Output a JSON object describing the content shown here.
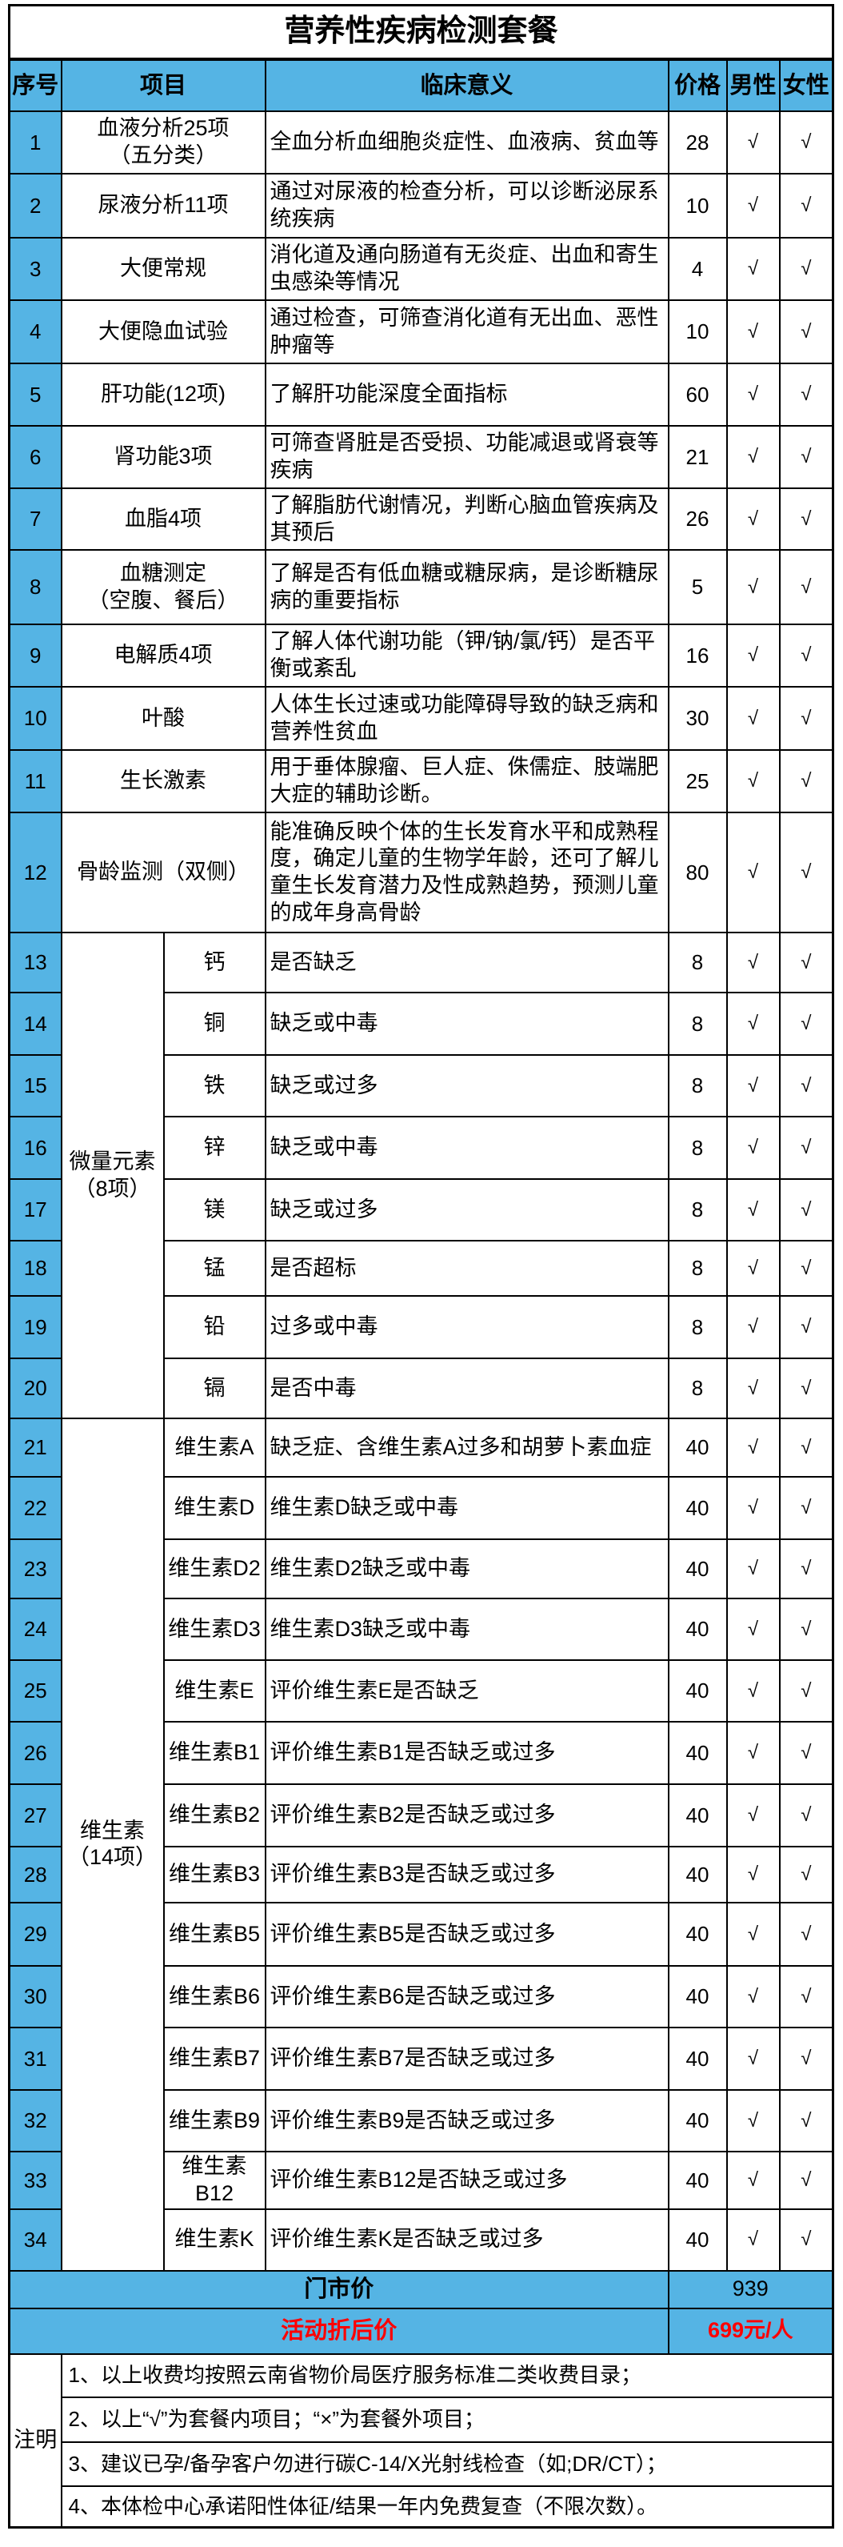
{
  "title": "营养性疾病检测套餐",
  "header": {
    "no": "序号",
    "item": "项目",
    "meaning": "临床意义",
    "price": "价格",
    "male": "男性",
    "female": "女性"
  },
  "colors": {
    "header_bg": "#55B4E4",
    "highlight_red": "#FF0000",
    "border": "#000000"
  },
  "check_mark": "√",
  "sections": [
    {
      "type": "flat",
      "rows": [
        {
          "no": "1",
          "item": "血液分析25项\n（五分类）",
          "meaning": "全血分析血细胞炎症性、血液病、贫血等",
          "price": "28",
          "male": "√",
          "female": "√"
        },
        {
          "no": "2",
          "item": "尿液分析11项",
          "meaning": "通过对尿液的检查分析，可以诊断泌尿系统疾病",
          "price": "10",
          "male": "√",
          "female": "√"
        },
        {
          "no": "3",
          "item": "大便常规",
          "meaning": "消化道及通向肠道有无炎症、出血和寄生虫感染等情况",
          "price": "4",
          "male": "√",
          "female": "√"
        },
        {
          "no": "4",
          "item": "大便隐血试验",
          "meaning": "通过检查，可筛查消化道有无出血、恶性肿瘤等",
          "price": "10",
          "male": "√",
          "female": "√"
        },
        {
          "no": "5",
          "item": "肝功能(12项)",
          "meaning": "了解肝功能深度全面指标",
          "price": "60",
          "male": "√",
          "female": "√"
        },
        {
          "no": "6",
          "item": "肾功能3项",
          "meaning": "可筛查肾脏是否受损、功能减退或肾衰等疾病",
          "price": "21",
          "male": "√",
          "female": "√"
        },
        {
          "no": "7",
          "item": "血脂4项",
          "meaning": "了解脂肪代谢情况，判断心脑血管疾病及其预后",
          "price": "26",
          "male": "√",
          "female": "√"
        },
        {
          "no": "8",
          "item": "血糖测定\n（空腹、餐后）",
          "meaning": "了解是否有低血糖或糖尿病，是诊断糖尿病的重要指标",
          "price": "5",
          "male": "√",
          "female": "√"
        },
        {
          "no": "9",
          "item": "电解质4项",
          "meaning": "了解人体代谢功能（钾/钠/氯/钙）是否平衡或紊乱",
          "price": "16",
          "male": "√",
          "female": "√"
        },
        {
          "no": "10",
          "item": "叶酸",
          "meaning": "人体生长过速或功能障碍导致的缺乏病和营养性贫血",
          "price": "30",
          "male": "√",
          "female": "√"
        },
        {
          "no": "11",
          "item": "生长激素",
          "meaning": "用于垂体腺瘤、巨人症、侏儒症、肢端肥大症的辅助诊断。",
          "price": "25",
          "male": "√",
          "female": "√"
        },
        {
          "no": "12",
          "item": "骨龄监测（双侧）",
          "meaning": "能准确反映个体的生长发育水平和成熟程度，确定儿童的生物学年龄，还可了解儿童生长发育潜力及性成熟趋势，预测儿童的成年身高骨龄",
          "price": "80",
          "male": "√",
          "female": "√"
        }
      ]
    },
    {
      "type": "group",
      "label": "微量元素\n（8项）",
      "rows": [
        {
          "no": "13",
          "item": "钙",
          "meaning": "是否缺乏",
          "price": "8",
          "male": "√",
          "female": "√"
        },
        {
          "no": "14",
          "item": "铜",
          "meaning": "缺乏或中毒",
          "price": "8",
          "male": "√",
          "female": "√"
        },
        {
          "no": "15",
          "item": "铁",
          "meaning": "缺乏或过多",
          "price": "8",
          "male": "√",
          "female": "√"
        },
        {
          "no": "16",
          "item": "锌",
          "meaning": "缺乏或中毒",
          "price": "8",
          "male": "√",
          "female": "√"
        },
        {
          "no": "17",
          "item": "镁",
          "meaning": "缺乏或过多",
          "price": "8",
          "male": "√",
          "female": "√"
        },
        {
          "no": "18",
          "item": "锰",
          "meaning": "是否超标",
          "price": "8",
          "male": "√",
          "female": "√"
        },
        {
          "no": "19",
          "item": "铅",
          "meaning": "过多或中毒",
          "price": "8",
          "male": "√",
          "female": "√"
        },
        {
          "no": "20",
          "item": "镉",
          "meaning": "是否中毒",
          "price": "8",
          "male": "√",
          "female": "√"
        }
      ]
    },
    {
      "type": "group",
      "label": "维生素\n（14项）",
      "rows": [
        {
          "no": "21",
          "item": "维生素A",
          "meaning": "缺乏症、含维生素A过多和胡萝卜素血症",
          "price": "40",
          "male": "√",
          "female": "√"
        },
        {
          "no": "22",
          "item": "维生素D",
          "meaning": "维生素D缺乏或中毒",
          "price": "40",
          "male": "√",
          "female": "√"
        },
        {
          "no": "23",
          "item": "维生素D2",
          "meaning": "维生素D2缺乏或中毒",
          "price": "40",
          "male": "√",
          "female": "√"
        },
        {
          "no": "24",
          "item": "维生素D3",
          "meaning": "维生素D3缺乏或中毒",
          "price": "40",
          "male": "√",
          "female": "√"
        },
        {
          "no": "25",
          "item": "维生素E",
          "meaning": "评价维生素E是否缺乏",
          "price": "40",
          "male": "√",
          "female": "√"
        },
        {
          "no": "26",
          "item": "维生素B1",
          "meaning": "评价维生素B1是否缺乏或过多",
          "price": "40",
          "male": "√",
          "female": "√"
        },
        {
          "no": "27",
          "item": "维生素B2",
          "meaning": "评价维生素B2是否缺乏或过多",
          "price": "40",
          "male": "√",
          "female": "√"
        },
        {
          "no": "28",
          "item": "维生素B3",
          "meaning": "评价维生素B3是否缺乏或过多",
          "price": "40",
          "male": "√",
          "female": "√"
        },
        {
          "no": "29",
          "item": "维生素B5",
          "meaning": "评价维生素B5是否缺乏或过多",
          "price": "40",
          "male": "√",
          "female": "√"
        },
        {
          "no": "30",
          "item": "维生素B6",
          "meaning": "评价维生素B6是否缺乏或过多",
          "price": "40",
          "male": "√",
          "female": "√"
        },
        {
          "no": "31",
          "item": "维生素B7",
          "meaning": "评价维生素B7是否缺乏或过多",
          "price": "40",
          "male": "√",
          "female": "√"
        },
        {
          "no": "32",
          "item": "维生素B9",
          "meaning": "评价维生素B9是否缺乏或过多",
          "price": "40",
          "male": "√",
          "female": "√"
        },
        {
          "no": "33",
          "item": "维生素B12",
          "meaning": "评价维生素B12是否缺乏或过多",
          "price": "40",
          "male": "√",
          "female": "√"
        },
        {
          "no": "34",
          "item": "维生素K",
          "meaning": "评价维生素K是否缺乏或过多",
          "price": "40",
          "male": "√",
          "female": "√"
        }
      ]
    }
  ],
  "footer_rows": [
    {
      "label": "门市价",
      "value": "939",
      "highlight": false
    },
    {
      "label": "活动折后价",
      "value": "699元/人",
      "highlight": true
    }
  ],
  "notes": {
    "label": "注明",
    "items": [
      "1、以上收费均按照云南省物价局医疗服务标准二类收费目录；",
      "2、以上“√”为套餐内项目；“×”为套餐外项目；",
      "3、建议已孕/备孕客户勿进行碳C-14/X光射线检查（如;DR/CT）；",
      "4、本体检中心承诺阳性体征/结果一年内免费复查（不限次数）。"
    ]
  }
}
